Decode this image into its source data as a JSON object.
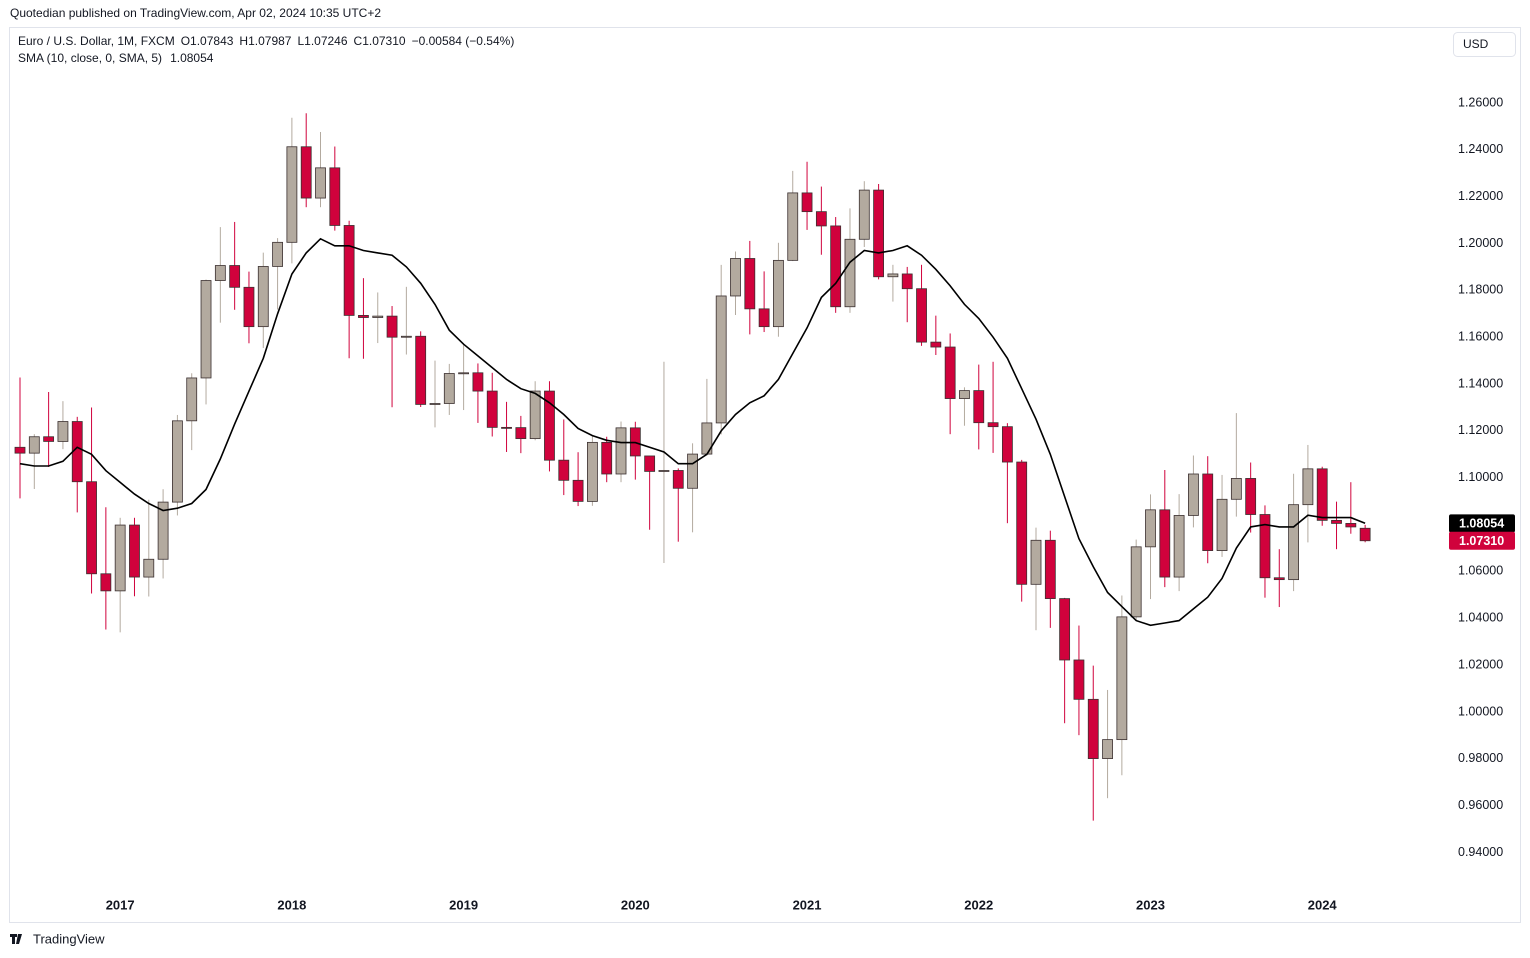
{
  "header": {
    "published": "Quotedian published on TradingView.com, Apr 02, 2024 10:35 UTC+2",
    "brand": "TradingView"
  },
  "chart_data": {
    "type": "candlestick",
    "legend": {
      "symbol": "Euro / U.S. Dollar, 1M, FXCM",
      "items": [
        "O1.07843",
        "H1.07987",
        "L1.07246",
        "C1.07310",
        "−0.00584 (−0.54%)"
      ]
    },
    "currency": "USD",
    "categories": [
      null,
      null,
      null,
      null,
      null,
      null,
      null,
      "2017",
      null,
      null,
      null,
      null,
      null,
      null,
      null,
      null,
      null,
      null,
      null,
      "2018",
      null,
      null,
      null,
      null,
      null,
      null,
      null,
      null,
      null,
      null,
      null,
      "2019",
      null,
      null,
      null,
      null,
      null,
      null,
      null,
      null,
      null,
      null,
      null,
      "2020",
      null,
      null,
      null,
      null,
      null,
      null,
      null,
      null,
      null,
      null,
      null,
      "2021",
      null,
      null,
      null,
      null,
      null,
      null,
      null,
      null,
      null,
      null,
      null,
      "2022",
      null,
      null,
      null,
      null,
      null,
      null,
      null,
      null,
      null,
      null,
      null,
      "2023",
      null,
      null,
      null,
      null,
      null,
      null,
      null,
      null,
      null,
      null,
      null,
      "2024",
      null,
      null,
      null
    ],
    "open": [
      1.113,
      1.1105,
      1.1175,
      1.1155,
      1.124,
      1.0983,
      1.059,
      1.0517,
      1.0798,
      1.0576,
      1.0652,
      1.0896,
      1.1243,
      1.1426,
      1.1842,
      1.1906,
      1.1813,
      1.1645,
      1.1902,
      1.2005,
      1.2413,
      1.2194,
      1.2323,
      1.2077,
      1.1693,
      1.1684,
      1.169,
      1.16,
      1.1604,
      1.1313,
      1.1317,
      1.1445,
      1.1448,
      1.137,
      1.1215,
      1.1214,
      1.1167,
      1.137,
      1.1075,
      1.0989,
      1.0899,
      1.1151,
      1.1016,
      1.1213,
      1.1093,
      1.1027,
      1.1031,
      1.0955,
      1.1101,
      1.1234,
      1.1776,
      1.1936,
      1.1721,
      1.1645,
      1.1928,
      1.2216,
      1.2136,
      1.2075,
      1.173,
      1.2018,
      1.2228,
      1.1858,
      1.187,
      1.1807,
      1.1579,
      1.1558,
      1.1338,
      1.1372,
      1.1235,
      1.1218,
      1.1067,
      1.0545,
      1.0733,
      1.0484,
      1.0222,
      1.0054,
      0.9801,
      0.9882,
      1.0406,
      1.0705,
      1.0863,
      1.0576,
      1.0839,
      1.1016,
      1.0689,
      1.0908,
      1.0997,
      1.0843,
      1.0573,
      1.0565,
      1.0885,
      1.1038,
      1.0818,
      1.0805,
      1.07843
    ],
    "high": [
      1.1428,
      1.1186,
      1.1366,
      1.1327,
      1.126,
      1.13,
      1.0874,
      1.0829,
      1.0829,
      1.0906,
      1.0951,
      1.1268,
      1.1446,
      1.1846,
      1.207,
      1.2092,
      1.188,
      1.1961,
      1.2023,
      1.2537,
      1.2556,
      1.2476,
      1.2414,
      1.2097,
      1.1852,
      1.1791,
      1.1733,
      1.1815,
      1.1625,
      1.15,
      1.1486,
      1.157,
      1.1488,
      1.1448,
      1.1324,
      1.1264,
      1.1412,
      1.1412,
      1.1249,
      1.1109,
      1.1179,
      1.1175,
      1.124,
      1.1239,
      1.1093,
      1.1495,
      1.104,
      1.1147,
      1.1422,
      1.1909,
      1.1966,
      1.2011,
      1.1881,
      1.2003,
      1.231,
      1.2349,
      1.2243,
      1.2113,
      1.215,
      1.2266,
      1.2254,
      1.1909,
      1.19,
      1.1909,
      1.1692,
      1.1616,
      1.1386,
      1.1483,
      1.1495,
      1.1233,
      1.1076,
      1.0787,
      1.0774,
      1.0487,
      1.0369,
      1.0198,
      1.0094,
      1.0497,
      1.0736,
      1.0929,
      1.1033,
      1.093,
      1.1095,
      1.1092,
      1.1012,
      1.1276,
      1.1065,
      1.0882,
      1.0695,
      1.1017,
      1.114,
      1.1047,
      1.0898,
      1.0981,
      1.07987
    ],
    "low": [
      1.0912,
      1.0952,
      1.1046,
      1.1122,
      1.0852,
      1.0506,
      1.0352,
      1.034,
      1.0494,
      1.0493,
      1.057,
      1.0839,
      1.1118,
      1.1313,
      1.1662,
      1.1717,
      1.1574,
      1.1554,
      1.1718,
      1.1915,
      1.2155,
      1.2155,
      1.2055,
      1.151,
      1.1508,
      1.1575,
      1.1301,
      1.1526,
      1.1302,
      1.1215,
      1.1268,
      1.1289,
      1.1234,
      1.1176,
      1.111,
      1.1105,
      1.116,
      1.1027,
      1.0926,
      1.0879,
      1.088,
      1.0981,
      1.0981,
      1.0992,
      1.0778,
      1.0636,
      1.0727,
      1.0767,
      1.1095,
      1.1185,
      1.1695,
      1.1612,
      1.1622,
      1.1602,
      1.1925,
      1.2058,
      1.1952,
      1.1704,
      1.1704,
      1.1985,
      1.1847,
      1.1752,
      1.1664,
      1.1563,
      1.1524,
      1.1186,
      1.1222,
      1.1121,
      1.1106,
      1.0806,
      1.0471,
      1.0349,
      1.0359,
      0.9952,
      0.9901,
      0.9536,
      0.9632,
      0.973,
      1.0393,
      1.0482,
      1.0533,
      1.0516,
      1.0788,
      1.0635,
      1.0662,
      1.0834,
      1.0766,
      1.0488,
      1.0448,
      1.0516,
      1.0724,
      1.0795,
      1.0695,
      1.0761,
      1.07246
    ],
    "close": [
      1.1105,
      1.1175,
      1.1155,
      1.124,
      1.0983,
      1.059,
      1.0517,
      1.0798,
      1.0576,
      1.0652,
      1.0896,
      1.1243,
      1.1426,
      1.1842,
      1.1906,
      1.1813,
      1.1645,
      1.1902,
      1.2005,
      1.2413,
      1.2194,
      1.2323,
      1.2077,
      1.1693,
      1.1684,
      1.169,
      1.16,
      1.1604,
      1.1313,
      1.1317,
      1.1445,
      1.1448,
      1.137,
      1.1215,
      1.1214,
      1.1167,
      1.137,
      1.1075,
      1.0989,
      1.0899,
      1.1151,
      1.1016,
      1.1213,
      1.1093,
      1.1027,
      1.1031,
      1.0955,
      1.1101,
      1.1234,
      1.1776,
      1.1936,
      1.1721,
      1.1645,
      1.1928,
      1.2216,
      1.2136,
      1.2075,
      1.173,
      1.2018,
      1.2228,
      1.1858,
      1.187,
      1.1807,
      1.1579,
      1.1558,
      1.1338,
      1.1372,
      1.1235,
      1.1218,
      1.1067,
      1.0545,
      1.0733,
      1.0484,
      1.0222,
      1.0054,
      0.9801,
      0.9882,
      1.0406,
      1.0705,
      1.0863,
      1.0576,
      1.0839,
      1.1016,
      1.0689,
      1.0908,
      1.0997,
      1.0843,
      1.0573,
      1.0565,
      1.0885,
      1.1038,
      1.0818,
      1.0805,
      1.079,
      1.0731
    ],
    "up_color": "#b3aa9f",
    "down_color": "#d0023c",
    "sma": {
      "name": "SMA (10, close, 0, SMA, 5)",
      "color": "#000000",
      "values": [
        1.106,
        1.105,
        1.105,
        1.107,
        1.113,
        1.11,
        1.103,
        1.098,
        1.093,
        1.089,
        1.086,
        1.087,
        1.089,
        1.095,
        1.108,
        1.123,
        1.137,
        1.151,
        1.17,
        1.187,
        1.196,
        1.202,
        1.199,
        1.199,
        1.197,
        1.196,
        1.195,
        1.19,
        1.183,
        1.174,
        1.163,
        1.157,
        1.152,
        1.147,
        1.142,
        1.138,
        1.136,
        1.132,
        1.127,
        1.121,
        1.118,
        1.116,
        1.115,
        1.115,
        1.113,
        1.111,
        1.106,
        1.106,
        1.11,
        1.12,
        1.127,
        1.132,
        1.135,
        1.142,
        1.153,
        1.164,
        1.177,
        1.183,
        1.192,
        1.197,
        1.196,
        1.197,
        1.199,
        1.195,
        1.189,
        1.182,
        1.174,
        1.168,
        1.16,
        1.151,
        1.138,
        1.125,
        1.11,
        1.092,
        1.074,
        1.062,
        1.051,
        1.045,
        1.039,
        1.037,
        1.038,
        1.039,
        1.044,
        1.049,
        1.057,
        1.07,
        1.079,
        1.08,
        1.079,
        1.079,
        1.084,
        1.083,
        1.083,
        1.083,
        1.08054
      ]
    },
    "price_tags": [
      {
        "value": 1.08054,
        "label": "1.08054",
        "color": "#000000"
      },
      {
        "value": 1.0731,
        "label": "1.07310",
        "color": "#d0023c"
      }
    ],
    "ylim": [
      0.924,
      1.292
    ],
    "yticks": [
      {
        "value": 0.94,
        "label": "0.94000"
      },
      {
        "value": 0.96,
        "label": "0.96000"
      },
      {
        "value": 0.98,
        "label": "0.98000"
      },
      {
        "value": 1.0,
        "label": "1.00000"
      },
      {
        "value": 1.02,
        "label": "1.02000"
      },
      {
        "value": 1.04,
        "label": "1.04000"
      },
      {
        "value": 1.06,
        "label": "1.06000"
      },
      {
        "value": 1.08,
        "label": "1.08000"
      },
      {
        "value": 1.1,
        "label": "1.10000"
      },
      {
        "value": 1.12,
        "label": "1.12000"
      },
      {
        "value": 1.14,
        "label": "1.14000"
      },
      {
        "value": 1.16,
        "label": "1.16000"
      },
      {
        "value": 1.18,
        "label": "1.18000"
      },
      {
        "value": 1.2,
        "label": "1.20000"
      },
      {
        "value": 1.22,
        "label": "1.22000"
      },
      {
        "value": 1.24,
        "label": "1.24000"
      },
      {
        "value": 1.26,
        "label": "1.26000"
      }
    ],
    "grid": false
  }
}
